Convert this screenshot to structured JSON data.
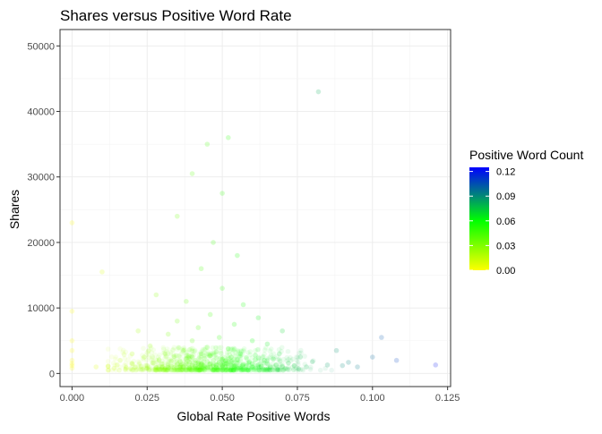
{
  "chart_data": {
    "type": "scatter",
    "title": "Shares versus Positive Word Rate",
    "xlabel": "Global Rate Positive Words",
    "ylabel": "Shares",
    "xlim": [
      -0.004,
      0.126
    ],
    "ylim": [
      -2000,
      52500
    ],
    "x_ticks": [
      0.0,
      0.025,
      0.05,
      0.075,
      0.1,
      0.125
    ],
    "x_tick_labels": [
      "0.000",
      "0.025",
      "0.050",
      "0.075",
      "0.100",
      "0.125"
    ],
    "y_ticks": [
      0,
      10000,
      20000,
      30000,
      40000,
      50000
    ],
    "y_tick_labels": [
      "0",
      "10000",
      "20000",
      "30000",
      "40000",
      "50000"
    ],
    "grid": true,
    "legend": {
      "title": "Positive Word Count",
      "placement": "right",
      "range": [
        0,
        0.125
      ],
      "ticks": [
        0.0,
        0.03,
        0.06,
        0.09,
        0.12
      ],
      "tick_labels": [
        "0.00",
        "0.03",
        "0.06",
        "0.09",
        "0.12"
      ],
      "color_stops": [
        {
          "value": 0.0,
          "color": "#ffff00"
        },
        {
          "value": 0.06,
          "color": "#00ff00"
        },
        {
          "value": 0.125,
          "color": "#0000ff"
        }
      ]
    },
    "point_alpha": 0.08,
    "points": [
      [
        0.0,
        2000
      ],
      [
        0.0,
        1500
      ],
      [
        0.0,
        9500
      ],
      [
        0.0,
        3500
      ],
      [
        0.0,
        23000
      ],
      [
        0.0,
        800
      ],
      [
        0.0,
        1200
      ],
      [
        0.0,
        5000
      ],
      [
        0.008,
        1000
      ],
      [
        0.01,
        15500
      ],
      [
        0.012,
        1100
      ],
      [
        0.014,
        800
      ],
      [
        0.015,
        1300
      ],
      [
        0.016,
        2000
      ],
      [
        0.018,
        900
      ],
      [
        0.02,
        1500
      ],
      [
        0.02,
        3000
      ],
      [
        0.021,
        1000
      ],
      [
        0.022,
        6500
      ],
      [
        0.023,
        1100
      ],
      [
        0.024,
        2500
      ],
      [
        0.025,
        1200
      ],
      [
        0.025,
        800
      ],
      [
        0.026,
        4200
      ],
      [
        0.027,
        1600
      ],
      [
        0.028,
        900
      ],
      [
        0.028,
        12000
      ],
      [
        0.029,
        2100
      ],
      [
        0.03,
        1000
      ],
      [
        0.03,
        1500
      ],
      [
        0.031,
        3000
      ],
      [
        0.031,
        700
      ],
      [
        0.032,
        1300
      ],
      [
        0.032,
        6000
      ],
      [
        0.033,
        1900
      ],
      [
        0.033,
        1100
      ],
      [
        0.034,
        900
      ],
      [
        0.034,
        2600
      ],
      [
        0.035,
        1400
      ],
      [
        0.035,
        8000
      ],
      [
        0.035,
        24000
      ],
      [
        0.036,
        1200
      ],
      [
        0.036,
        1800
      ],
      [
        0.037,
        1000
      ],
      [
        0.037,
        3500
      ],
      [
        0.038,
        1500
      ],
      [
        0.038,
        2200
      ],
      [
        0.038,
        11000
      ],
      [
        0.039,
        900
      ],
      [
        0.039,
        1700
      ],
      [
        0.04,
        1300
      ],
      [
        0.04,
        2500
      ],
      [
        0.04,
        5000
      ],
      [
        0.04,
        30500
      ],
      [
        0.041,
        1100
      ],
      [
        0.041,
        2000
      ],
      [
        0.042,
        1600
      ],
      [
        0.042,
        900
      ],
      [
        0.042,
        7000
      ],
      [
        0.043,
        1400
      ],
      [
        0.043,
        3000
      ],
      [
        0.043,
        16000
      ],
      [
        0.044,
        1200
      ],
      [
        0.044,
        2300
      ],
      [
        0.045,
        1000
      ],
      [
        0.045,
        1800
      ],
      [
        0.045,
        4000
      ],
      [
        0.045,
        35000
      ],
      [
        0.046,
        1500
      ],
      [
        0.046,
        2700
      ],
      [
        0.046,
        9000
      ],
      [
        0.047,
        1100
      ],
      [
        0.047,
        2000
      ],
      [
        0.047,
        20000
      ],
      [
        0.048,
        1300
      ],
      [
        0.048,
        3300
      ],
      [
        0.048,
        900
      ],
      [
        0.049,
        1700
      ],
      [
        0.049,
        5500
      ],
      [
        0.05,
        1200
      ],
      [
        0.05,
        2200
      ],
      [
        0.05,
        13000
      ],
      [
        0.05,
        27500
      ],
      [
        0.051,
        1000
      ],
      [
        0.051,
        1900
      ],
      [
        0.052,
        1500
      ],
      [
        0.052,
        3800
      ],
      [
        0.052,
        36000
      ],
      [
        0.053,
        1200
      ],
      [
        0.053,
        2500
      ],
      [
        0.054,
        1100
      ],
      [
        0.054,
        7500
      ],
      [
        0.055,
        1600
      ],
      [
        0.055,
        2100
      ],
      [
        0.055,
        18000
      ],
      [
        0.056,
        1000
      ],
      [
        0.056,
        3000
      ],
      [
        0.057,
        1400
      ],
      [
        0.057,
        10500
      ],
      [
        0.058,
        1200
      ],
      [
        0.058,
        2400
      ],
      [
        0.059,
        1800
      ],
      [
        0.06,
        1000
      ],
      [
        0.06,
        1500
      ],
      [
        0.06,
        5000
      ],
      [
        0.061,
        2800
      ],
      [
        0.062,
        1300
      ],
      [
        0.062,
        8500
      ],
      [
        0.063,
        1100
      ],
      [
        0.064,
        2000
      ],
      [
        0.065,
        1500
      ],
      [
        0.065,
        4500
      ],
      [
        0.066,
        1000
      ],
      [
        0.067,
        2200
      ],
      [
        0.068,
        1300
      ],
      [
        0.069,
        3000
      ],
      [
        0.07,
        1100
      ],
      [
        0.07,
        6500
      ],
      [
        0.072,
        1600
      ],
      [
        0.074,
        1200
      ],
      [
        0.076,
        2500
      ],
      [
        0.078,
        1000
      ],
      [
        0.08,
        1800
      ],
      [
        0.082,
        43000
      ],
      [
        0.085,
        1300
      ],
      [
        0.088,
        3500
      ],
      [
        0.09,
        1200
      ],
      [
        0.092,
        1700
      ],
      [
        0.095,
        1000
      ],
      [
        0.1,
        2500
      ],
      [
        0.103,
        5500
      ],
      [
        0.108,
        2000
      ],
      [
        0.121,
        1300
      ]
    ]
  }
}
